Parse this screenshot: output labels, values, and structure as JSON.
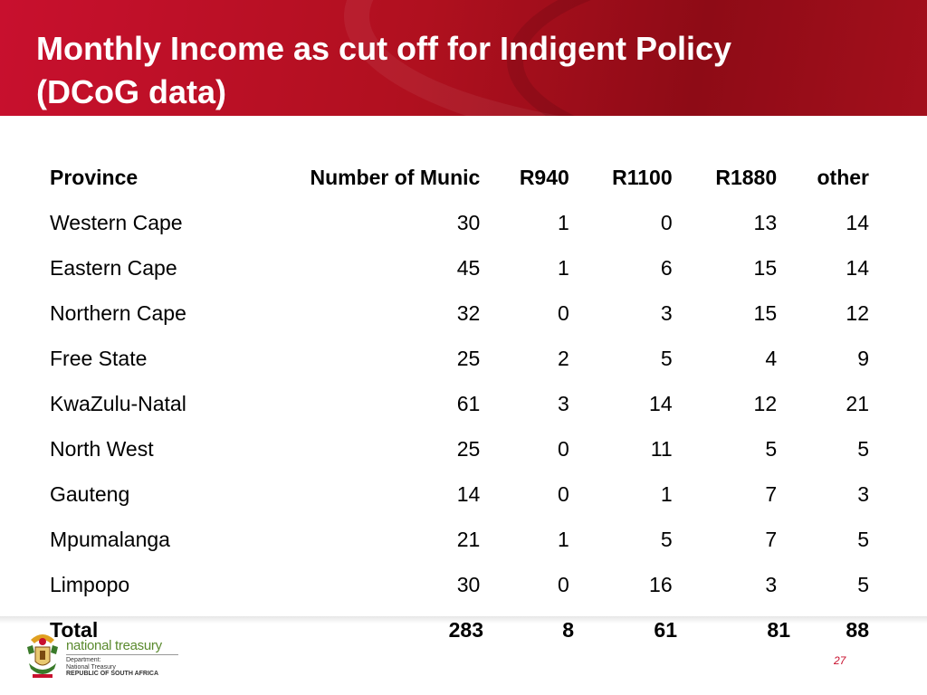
{
  "slide": {
    "title": "Monthly Income as cut off for Indigent Policy (DCoG data)",
    "page_number": "27"
  },
  "table": {
    "headers": [
      "Province",
      "Number of Munic",
      "R940",
      "R1100",
      "R1880",
      "other"
    ],
    "rows": [
      [
        "Western Cape",
        "30",
        "1",
        "0",
        "13",
        "14"
      ],
      [
        "Eastern Cape",
        "45",
        "1",
        "6",
        "15",
        "14"
      ],
      [
        "Northern Cape",
        "32",
        "0",
        "3",
        "15",
        "12"
      ],
      [
        "Free State",
        "25",
        "2",
        "5",
        "4",
        "9"
      ],
      [
        "KwaZulu-Natal",
        "61",
        "3",
        "14",
        "12",
        "21"
      ],
      [
        "North West",
        "25",
        "0",
        "11",
        "5",
        "5"
      ],
      [
        "Gauteng",
        "14",
        "0",
        "1",
        "7",
        "3"
      ],
      [
        "Mpumalanga",
        "21",
        "1",
        "5",
        "7",
        "5"
      ],
      [
        "Limpopo",
        "30",
        "0",
        "16",
        "3",
        "5"
      ]
    ],
    "total": [
      "Total",
      "283",
      "8",
      "61",
      "81",
      "88"
    ]
  },
  "footer": {
    "logo_name": "national treasury",
    "logo_line1": "Department:",
    "logo_line2": "National Treasury",
    "logo_line3": "REPUBLIC OF SOUTH AFRICA"
  },
  "colors": {
    "brand_red": "#c8102e",
    "logo_green": "#5a8a2e"
  },
  "icons": [
    "coat-of-arms-icon"
  ]
}
